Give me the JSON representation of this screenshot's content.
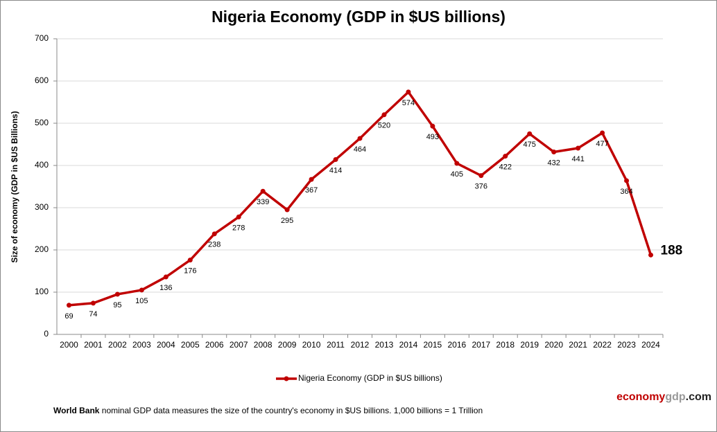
{
  "chart_data": {
    "type": "line",
    "title": "Nigeria Economy (GDP in $US billions)",
    "y_label": "Size of economy (GDP in $US Billions)",
    "categories": [
      "2000",
      "2001",
      "2002",
      "2003",
      "2004",
      "2005",
      "2006",
      "2007",
      "2008",
      "2009",
      "2010",
      "2011",
      "2012",
      "2013",
      "2014",
      "2015",
      "2016",
      "2017",
      "2018",
      "2019",
      "2020",
      "2021",
      "2022",
      "2023",
      "2024"
    ],
    "series": [
      {
        "name": "Nigeria Economy (GDP in $US billions)",
        "color": "#c00000",
        "values": [
          69,
          74,
          95,
          105,
          136,
          176,
          238,
          278,
          339,
          295,
          367,
          414,
          464,
          520,
          574,
          493,
          405,
          376,
          422,
          475,
          432,
          441,
          477,
          364,
          188
        ]
      }
    ],
    "ylim": [
      0,
      700
    ],
    "yticks": [
      0,
      100,
      200,
      300,
      400,
      500,
      600,
      700
    ],
    "grid": true,
    "legend": "bottom",
    "brand": [
      "economy",
      "gdp",
      ".com"
    ],
    "note": [
      "World Bank",
      " nominal GDP data  measures the size of the country's economy in $US billions. 1,000 billions = 1 Trillion"
    ]
  }
}
